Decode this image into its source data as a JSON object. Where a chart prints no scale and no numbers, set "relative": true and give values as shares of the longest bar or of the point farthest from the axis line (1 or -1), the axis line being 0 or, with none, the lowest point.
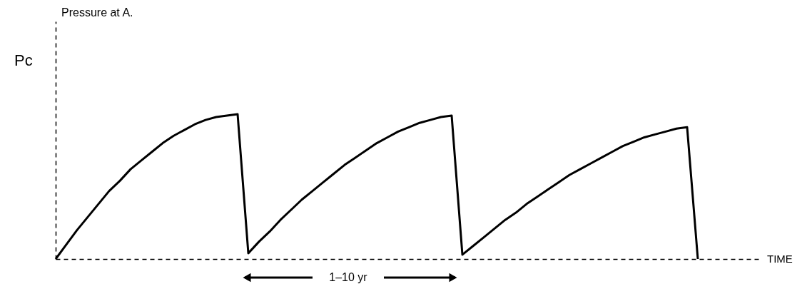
{
  "chart_data": {
    "type": "line",
    "relative": true,
    "tick_labels": false,
    "color": "#000000",
    "categories": [
      null,
      null,
      null,
      null,
      null,
      null,
      null,
      null,
      null,
      null,
      null,
      null,
      null,
      null,
      null,
      null,
      null,
      null,
      null,
      null,
      null,
      null,
      null,
      null,
      null,
      null,
      null,
      null,
      null,
      null,
      null,
      null,
      null,
      null,
      null,
      null,
      null,
      null,
      null,
      null,
      null,
      null,
      null,
      null,
      null,
      null,
      null,
      null,
      null,
      null,
      null,
      null,
      null,
      null,
      null,
      null,
      null,
      null,
      null,
      null,
      null
    ],
    "values": [
      0,
      0.1,
      0.2,
      0.29,
      0.38,
      0.47,
      0.54,
      0.62,
      0.68,
      0.74,
      0.8,
      0.85,
      0.89,
      0.93,
      0.96,
      0.98,
      0.99,
      1.0,
      0.04,
      0.12,
      0.19,
      0.27,
      0.34,
      0.41,
      0.47,
      0.53,
      0.59,
      0.65,
      0.7,
      0.75,
      0.8,
      0.84,
      0.88,
      0.91,
      0.94,
      0.96,
      0.98,
      0.99,
      0.03,
      0.09,
      0.15,
      0.21,
      0.27,
      0.32,
      0.38,
      0.43,
      0.48,
      0.53,
      0.58,
      0.62,
      0.66,
      0.7,
      0.74,
      0.78,
      0.81,
      0.84,
      0.86,
      0.88,
      0.9,
      0.91,
      0
    ],
    "annotations": [
      "Pressure at A.",
      "Pc",
      "1–10 yr",
      "TIME"
    ]
  }
}
